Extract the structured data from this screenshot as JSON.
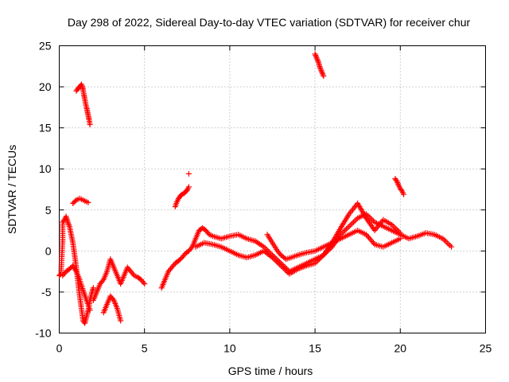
{
  "chart_data": {
    "type": "scatter",
    "title": "Day 298 of 2022, Sidereal Day-to-day VTEC variation (SDTVAR) for receiver chur",
    "xlabel": "GPS time / hours",
    "ylabel": "SDTVAR / TECUs",
    "xlim": [
      0,
      25
    ],
    "ylim": [
      -10,
      25
    ],
    "xticks": [
      0,
      5,
      10,
      15,
      20,
      25
    ],
    "yticks": [
      -10,
      -5,
      0,
      5,
      10,
      15,
      20,
      25
    ],
    "grid": true,
    "marker": "+",
    "color": "#ff0000",
    "series": [
      {
        "name": "SDTVAR",
        "segments": [
          {
            "x": [
              1.0,
              1.1,
              1.2,
              1.3,
              1.35,
              1.4,
              1.45,
              1.5,
              1.55,
              1.6,
              1.65,
              1.7,
              1.75,
              1.8
            ],
            "y": [
              19.5,
              19.8,
              20.0,
              20.3,
              20.1,
              19.6,
              19.0,
              18.5,
              17.9,
              17.5,
              17.0,
              16.5,
              16.0,
              15.4
            ]
          },
          {
            "x": [
              15.0,
              15.1,
              15.2,
              15.3,
              15.4,
              15.5
            ],
            "y": [
              24.0,
              23.5,
              23.0,
              22.3,
              21.8,
              21.3
            ]
          },
          {
            "x": [
              6.8,
              6.9,
              7.0,
              7.1,
              7.2,
              7.3,
              7.4,
              7.5,
              7.6
            ],
            "y": [
              5.4,
              6.0,
              6.4,
              6.7,
              6.9,
              7.0,
              7.2,
              7.4,
              7.8
            ]
          },
          {
            "x": [
              7.6
            ],
            "y": [
              9.4
            ]
          },
          {
            "x": [
              19.7,
              19.8,
              19.9,
              20.0,
              20.1,
              20.2
            ],
            "y": [
              8.8,
              8.5,
              8.0,
              7.6,
              7.3,
              6.9
            ]
          },
          {
            "x": [
              0.0,
              0.1,
              0.2,
              0.2,
              0.3,
              0.4,
              0.5,
              0.6,
              0.7,
              0.8,
              0.9,
              1.0,
              1.1,
              1.2,
              1.3,
              1.4,
              1.5,
              1.6,
              1.7,
              1.8,
              1.9,
              2.0
            ],
            "y": [
              -3.0,
              -2.8,
              1.2,
              3.5,
              3.8,
              4.2,
              3.5,
              3.0,
              2.0,
              1.0,
              -0.5,
              -2.0,
              -3.8,
              -5.5,
              -7.0,
              -8.5,
              -8.8,
              -8.0,
              -7.2,
              -6.0,
              -5.2,
              -4.5
            ]
          },
          {
            "x": [
              0.2,
              0.4,
              0.6,
              0.8,
              1.0,
              1.2,
              1.4,
              1.6,
              1.8
            ],
            "y": [
              -3.0,
              -2.5,
              -2.2,
              -1.8,
              -2.5,
              -3.5,
              -4.8,
              -6.0,
              -7.2
            ]
          },
          {
            "x": [
              0.8,
              1.0,
              1.2,
              1.4,
              1.6,
              1.7
            ],
            "y": [
              5.8,
              6.2,
              6.4,
              6.2,
              6.0,
              5.9
            ]
          },
          {
            "x": [
              2.0,
              2.2,
              2.4,
              2.6,
              2.8,
              3.0,
              3.2,
              3.4,
              3.6,
              3.8,
              4.0,
              4.2,
              4.4,
              4.6,
              4.8,
              5.0
            ],
            "y": [
              -6.0,
              -5.0,
              -4.0,
              -3.5,
              -2.5,
              -1.0,
              -2.0,
              -3.0,
              -4.0,
              -3.0,
              -2.0,
              -2.5,
              -3.0,
              -3.2,
              -3.5,
              -4.0
            ]
          },
          {
            "x": [
              2.6,
              2.8,
              3.0,
              3.2,
              3.4,
              3.6
            ],
            "y": [
              -7.5,
              -6.5,
              -5.5,
              -6.0,
              -7.0,
              -8.5
            ]
          },
          {
            "x": [
              6.0,
              6.2,
              6.4,
              6.6,
              6.8,
              7.0,
              7.2,
              7.4,
              7.6,
              7.8,
              8.0,
              8.2,
              8.4,
              8.6,
              8.8,
              9.0,
              9.5,
              10.0,
              10.5,
              11.0,
              11.5,
              12.0,
              12.5,
              13.0,
              13.5,
              14.0,
              14.5,
              15.0,
              15.5,
              16.0,
              16.5,
              17.0,
              17.5,
              18.0,
              18.5,
              19.0,
              19.5,
              20.0,
              20.5,
              21.0,
              21.5,
              22.0,
              22.5,
              23.0
            ],
            "y": [
              -4.5,
              -3.5,
              -2.5,
              -2.0,
              -1.5,
              -1.2,
              -0.8,
              -0.3,
              0.0,
              0.5,
              1.5,
              2.5,
              2.8,
              2.5,
              2.0,
              1.8,
              1.5,
              1.8,
              2.0,
              1.5,
              1.2,
              0.5,
              -0.5,
              -1.5,
              -2.5,
              -2.0,
              -1.5,
              -1.0,
              -0.5,
              0.5,
              2.0,
              3.0,
              4.0,
              4.5,
              3.5,
              3.0,
              2.5,
              2.0,
              1.5,
              1.8,
              2.2,
              2.0,
              1.5,
              0.5
            ]
          },
          {
            "x": [
              8.0,
              8.5,
              9.0,
              9.5,
              10.0,
              10.5,
              11.0,
              11.5,
              12.0,
              12.5,
              13.0,
              13.5,
              14.0,
              14.5,
              15.0,
              15.5,
              16.0,
              16.5,
              17.0,
              17.5,
              18.0,
              18.5,
              19.0,
              19.5,
              20.0
            ],
            "y": [
              0.5,
              1.0,
              0.8,
              0.5,
              0.0,
              -0.5,
              -0.8,
              -0.5,
              0.0,
              -0.8,
              -1.8,
              -2.8,
              -2.2,
              -1.8,
              -1.5,
              -0.5,
              1.0,
              2.8,
              4.5,
              5.8,
              4.0,
              2.5,
              3.8,
              3.2,
              2.2
            ]
          },
          {
            "x": [
              12.2,
              12.5,
              12.8,
              13.0,
              13.3,
              13.6,
              14.0,
              14.5,
              15.0,
              15.5,
              16.0,
              16.5,
              17.0,
              17.5,
              18.0,
              18.5,
              19.0,
              19.5,
              20.0
            ],
            "y": [
              2.0,
              1.0,
              0.0,
              -0.5,
              -1.0,
              -0.8,
              -0.5,
              -0.2,
              0.0,
              0.5,
              1.0,
              1.5,
              2.0,
              2.5,
              2.0,
              0.8,
              0.5,
              1.0,
              1.5
            ]
          }
        ]
      }
    ]
  }
}
